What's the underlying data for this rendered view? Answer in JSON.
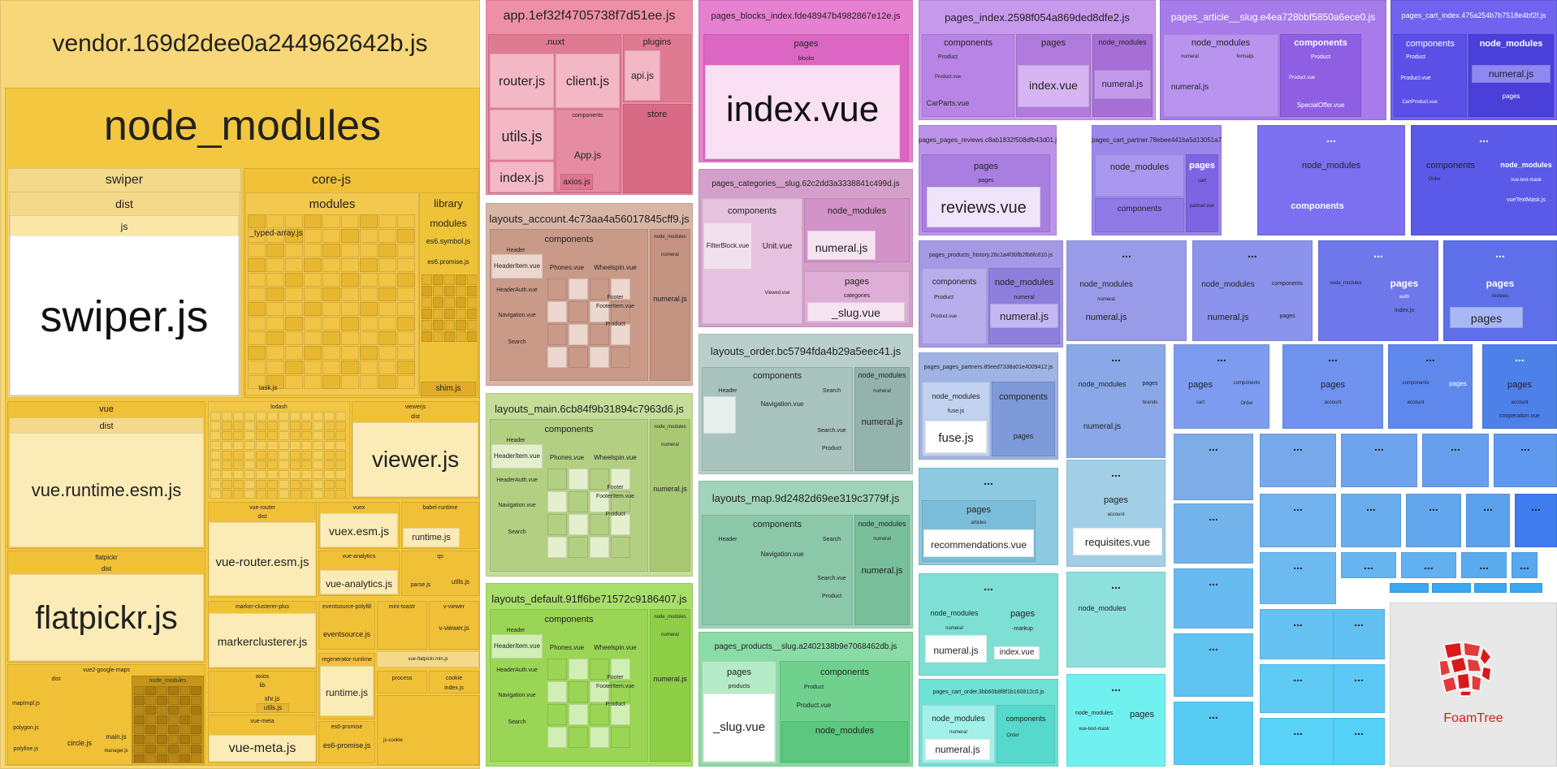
{
  "vendor": {
    "title": "vendor.169d2dee0a244962642b.js",
    "node_modules": "node_modules",
    "swiper": "swiper",
    "dist": "dist",
    "js": "js",
    "swiper_js": "swiper.js",
    "core_js": "core-js",
    "modules": "modules",
    "typed_array": "_typed-array.js",
    "library": "library",
    "library_modules": "modules",
    "es6_symbol": "es6.symbol.js",
    "es6_promise": "es6.promise.js",
    "shim": "shim.js",
    "task": "task.js",
    "vue": "vue",
    "vue_dist": "dist",
    "vue_runtime": "vue.runtime.esm.js",
    "lodash": "lodash",
    "viewerjs": "viewerjs",
    "viewerjs_dist": "dist",
    "viewer": "viewer.js",
    "flatpickr": "flatpickr",
    "flatpickr_dist": "dist",
    "flatpickr_js": "flatpickr.js",
    "vue_router": "vue-router",
    "vue_router_dist": "dist",
    "vue_router_esm": "vue-router.esm.js",
    "vuex": "vuex",
    "vuex_esm": "vuex.esm.js",
    "babel_runtime": "babel-runtime",
    "runtime_js": "runtime.js",
    "vue_analytics": "vue-analytics",
    "vue_analytics_js": "vue-analytics.js",
    "qs": "qs",
    "parse": "parse.js",
    "utils": "utils.js",
    "marker_clusterer_plus": "marker-clusterer-plus",
    "markerclusterer": "markerclusterer.js",
    "eventsource_polyfill": "eventsource-polyfill",
    "eventsource": "eventsource.js",
    "mini_toastr": "mini-toastr",
    "v_viewer": "v-viewer",
    "v_viewer_js": "v-viewer.js",
    "vue_flatpickr": "vue-flatpickr.min.js",
    "regenerator_runtime": "regenerator-runtime",
    "runtime_js2": "runtime.js",
    "process": "process",
    "cookie": "cookie",
    "index": "index.js",
    "es6_promise_pkg": "es6-promise",
    "es6_promise_js": "es6-promise.js",
    "js_cookie": "js-cookie",
    "axios": "axios",
    "lib": "lib",
    "xhr": "xhr.js",
    "axios_utils": "utils.js",
    "vue_meta": "vue-meta",
    "vue_meta_js": "vue-meta.js",
    "vue2_google_maps": "vue2-google-maps",
    "gm_dist": "dist",
    "gm_node_modules": "node_modules",
    "mapimpl": "mapImpl.js",
    "polygon": "polygon.js",
    "polyline": "polyline.js",
    "circle": "circle.js",
    "main": "main.js",
    "manager": "manager.js"
  },
  "app": {
    "title": "app.1ef32f4705738f7d51ee.js",
    "nuxt": ".nuxt",
    "plugins": "plugins",
    "router": "router.js",
    "client": "client.js",
    "api": "api.js",
    "utils": "utils.js",
    "components": "components",
    "store": "store",
    "index": "index.js",
    "app": "App.js",
    "axios": "axios.js"
  },
  "layout_account": {
    "title": "layouts_account.4c73aa4a56017845cff9.js",
    "components": "components",
    "node_modules": "node_modules",
    "header": "Header",
    "header_item": "HeaderItem.vue",
    "header_auth": "HeaderAuth.vue",
    "navigation": "Navigation.vue",
    "phones": "Phones.vue",
    "wheelspin": "Wheelspin.vue",
    "footer": "Footer",
    "footer_item": "FooterItem.vue",
    "product": "Product",
    "search": "Search",
    "numeral": "numeral",
    "numeral_js": "numeral.js"
  },
  "layout_main": {
    "title": "layouts_main.6cb84f9b31894c7963d6.js",
    "components": "components",
    "node_modules": "node_modules",
    "header": "Header",
    "header_item": "HeaderItem.vue",
    "header_auth": "HeaderAuth.vue",
    "navigation": "Navigation.vue",
    "phones": "Phones.vue",
    "wheelspin": "Wheelspin.vue",
    "footer": "Footer",
    "footer_item": "FooterItem.vue",
    "product": "Product",
    "search": "Search",
    "numeral": "numeral",
    "numeral_js": "numeral.js"
  },
  "layout_default": {
    "title": "layouts_default.91ff6be71572c9186407.js",
    "components": "components",
    "node_modules": "node_modules",
    "header": "Header",
    "header_item": "HeaderItem.vue",
    "header_auth": "HeaderAuth.vue",
    "navigation": "Navigation.vue",
    "phones": "Phones.vue",
    "wheelspin": "Wheelspin.vue",
    "footer": "Footer",
    "footer_item": "FooterItem.vue",
    "product": "Product",
    "search": "Search",
    "numeral": "numeral",
    "numeral_js": "numeral.js"
  },
  "blocks": {
    "title": "pages_blocks_index.fde48947b4982867e12e.js",
    "pages": "pages",
    "blocks": "blocks",
    "index": "index.vue"
  },
  "categories": {
    "title": "pages_categories__slug.62c2dd3a3338841c499d.js",
    "components": "components",
    "node_modules": "node_modules",
    "filterblock": "FilterBlock.vue",
    "unit": "Unit.vue",
    "numeral_js": "numeral.js",
    "viewed": "Viewed.vue",
    "pages": "pages",
    "categories": "categories",
    "slug": "_slug.vue"
  },
  "layout_order": {
    "title": "layouts_order.bc5794fda4b29a5eec41.js",
    "components": "components",
    "node_modules": "node_modules",
    "header": "Header",
    "navigation": "Navigation.vue",
    "search": "Search",
    "search_vue": "Search.vue",
    "product": "Product",
    "numeral": "numeral",
    "numeral_js": "numeral.js"
  },
  "layout_map": {
    "title": "layouts_map.9d2482d69ee319c3779f.js",
    "components": "components",
    "node_modules": "node_modules",
    "header": "Header",
    "navigation": "Navigation.vue",
    "search": "Search",
    "search_vue": "Search.vue",
    "product": "Product",
    "numeral": "numeral",
    "numeral_js": "numeral.js"
  },
  "products_slug": {
    "title": "pages_products__slug.a2402138b9e7068462db.js",
    "pages": "pages",
    "products": "products",
    "slug": "_slug.vue",
    "components": "components",
    "product": "Product",
    "product_vue": "Product.vue",
    "node_modules": "node_modules"
  },
  "pages_index": {
    "title": "pages_index.2598f054a869ded8dfe2.js",
    "components": "components",
    "pages": "pages",
    "node_modules": "node_modules",
    "product": "Product",
    "product_vue": "Product.vue",
    "carparts": "CarParts.vue",
    "index_vue": "index.vue",
    "numeral_js": "numeral.js"
  },
  "article": {
    "title": "pages_article__slug.e4ea728bbf5850a6ece0.js",
    "node_modules": "node_modules",
    "components": "components",
    "numeral": "numeral",
    "formatjs": "formatjs",
    "numeral_js": "numeral.js",
    "product": "Product",
    "product_vue": "Product.vue",
    "special": "SpecialOffer.vue"
  },
  "cart_index": {
    "title": "pages_cart_index.475a254b7b7518e4bf2f.js",
    "components": "components",
    "node_modules": "node_modules",
    "product": "Product",
    "product_vue": "Product.vue",
    "cartproduct": "CartProduct.vue",
    "numeral": "numeral",
    "numeral_js": "numeral.js",
    "pages": "pages"
  },
  "reviews": {
    "title": "pages_pages_reviews.c8ab1832f508dfb43d01.js",
    "pages": "pages",
    "pages2": "pages",
    "reviews": "reviews.vue"
  },
  "cart_partner": {
    "title": "pages_cart_partner.78ebee441ba5d13051a7.js",
    "node_modules": "node_modules",
    "pages": "pages",
    "cart": "cart",
    "partner": "partner.vue",
    "components": "components"
  },
  "dots": "...",
  "products_history": {
    "title": "pages_products_history.26c1a4f30fb2fb6fc810.js",
    "components": "components",
    "node_modules": "node_modules",
    "product": "Product",
    "product_vue": "Product.vue",
    "numeral": "numeral",
    "numeral_js": "numeral.js"
  },
  "partners": {
    "title": "pages_pages_partners.85eed7338a01e4009412.js",
    "node_modules": "node_modules",
    "components": "components",
    "fuse": "fuse.js",
    "fuse_js": "fuse.js",
    "pages": "pages"
  },
  "recommendations": {
    "pages": "pages",
    "articles": "articles",
    "recs": "recommendations.vue"
  },
  "mininumeral": {
    "numeral": "numeral",
    "node_modules": "node_modules",
    "numeral_js": "numeral.js",
    "pages": "pages",
    "markup": "-markup",
    "index_vue": "index.vue"
  },
  "cart_order": {
    "title": "pages_cart_order.3bb60b8f8f1b160812c0.js",
    "node_modules": "node_modules",
    "components": "components",
    "numeral": "numeral",
    "numeral_js": "numeral.js",
    "order": "Order"
  },
  "misc": {
    "auth": "auth",
    "index_js": "index.js",
    "vue_text_mask": "vue-text-mask",
    "reviews": "reviews",
    "order": "Order",
    "vuetextmask": "vueTextMask.js",
    "brands": "brands",
    "account": "account",
    "requisites": "requisites.vue",
    "cooperation": "cooperation.vue",
    "cart": "cart",
    "pages": "pages",
    "components": "components",
    "node_modules": "node_modules",
    "numeral": "numeral",
    "numeral_js": "numeral.js"
  },
  "brand": {
    "name": "FoamTree",
    "colors": [
      "#d81a1a",
      "#e23b3b"
    ]
  }
}
